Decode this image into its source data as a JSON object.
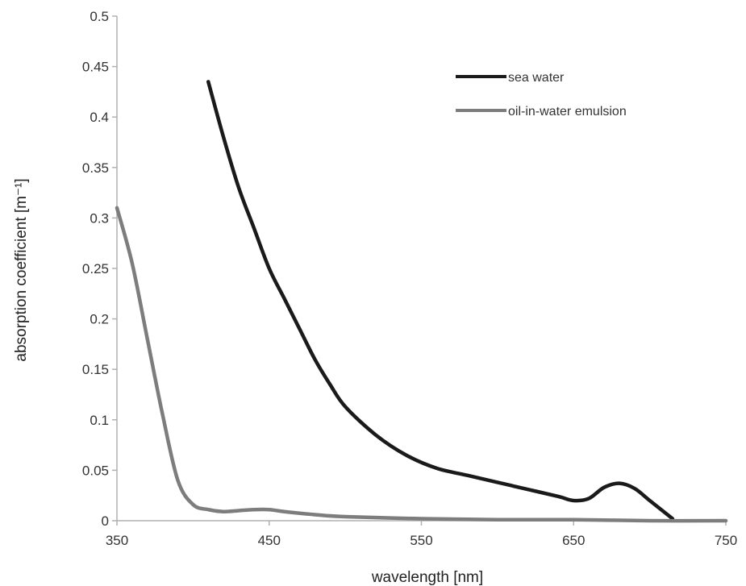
{
  "chart_data": {
    "type": "line",
    "title": "",
    "xlabel": "wavelength [nm]",
    "ylabel": "absorption coefficient [m⁻¹]",
    "xlim": [
      350,
      750
    ],
    "ylim": [
      0,
      0.5
    ],
    "x_ticks": [
      "350",
      "450",
      "550",
      "650",
      "750"
    ],
    "y_ticks": [
      "0",
      "0.05",
      "0.1",
      "0.15",
      "0.2",
      "0.25",
      "0.3",
      "0.35",
      "0.4",
      "0.45",
      "0.5"
    ],
    "grid": false,
    "legend_position": "top-right",
    "series": [
      {
        "name": "sea water",
        "color": "#1a1a1a",
        "x": [
          410,
          420,
          430,
          440,
          450,
          460,
          470,
          480,
          490,
          500,
          520,
          540,
          560,
          580,
          600,
          620,
          640,
          650,
          660,
          670,
          680,
          690,
          700,
          715
        ],
        "y": [
          0.435,
          0.38,
          0.33,
          0.29,
          0.25,
          0.22,
          0.19,
          0.16,
          0.135,
          0.113,
          0.085,
          0.065,
          0.052,
          0.045,
          0.038,
          0.031,
          0.024,
          0.02,
          0.022,
          0.033,
          0.037,
          0.032,
          0.02,
          0.002
        ]
      },
      {
        "name": "oil-in-water emulsion",
        "color": "#7d7d7d",
        "x": [
          350,
          360,
          370,
          380,
          390,
          400,
          410,
          420,
          430,
          440,
          450,
          460,
          480,
          500,
          550,
          600,
          650,
          700,
          750
        ],
        "y": [
          0.31,
          0.255,
          0.18,
          0.105,
          0.04,
          0.016,
          0.011,
          0.009,
          0.01,
          0.011,
          0.011,
          0.009,
          0.006,
          0.004,
          0.002,
          0.001,
          0.001,
          0.0,
          0.0
        ]
      }
    ]
  }
}
